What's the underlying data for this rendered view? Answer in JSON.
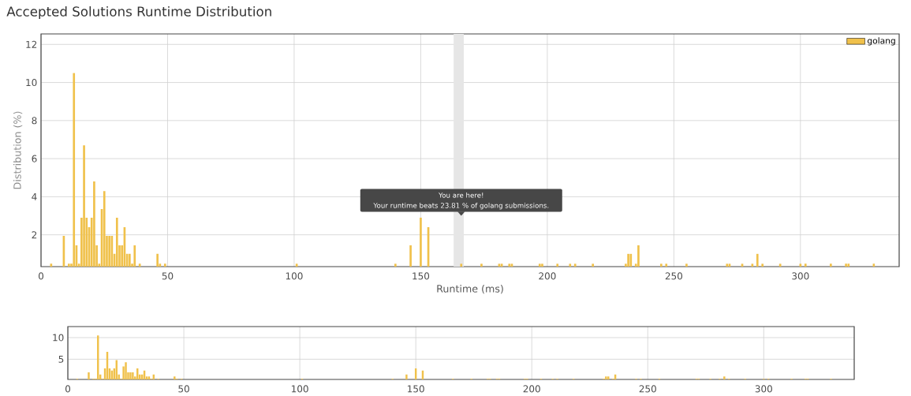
{
  "chart_data": [
    {
      "type": "bar",
      "title": "Accepted Solutions Runtime Distribution",
      "xlabel": "Runtime (ms)",
      "ylabel": "Distribution (%)",
      "x": [
        4,
        9,
        11,
        12,
        13,
        14,
        15,
        16,
        17,
        18,
        19,
        20,
        21,
        22,
        23,
        24,
        25,
        26,
        27,
        28,
        29,
        30,
        31,
        32,
        33,
        34,
        35,
        36,
        37,
        39,
        46,
        47,
        49,
        101,
        140,
        146,
        150,
        153,
        166,
        174,
        181,
        182,
        185,
        186,
        197,
        198,
        204,
        209,
        211,
        218,
        231,
        232,
        233,
        235,
        236,
        245,
        247,
        255,
        271,
        272,
        277,
        281,
        283,
        285,
        292,
        300,
        302,
        312,
        318,
        319,
        329
      ],
      "series": [
        {
          "name": "golang",
          "color": "#f0c14b",
          "values": [
            0.48,
            1.95,
            0.48,
            0.48,
            10.5,
            1.45,
            0.48,
            2.9,
            6.7,
            2.9,
            2.4,
            2.9,
            4.8,
            1.45,
            0.48,
            3.35,
            4.3,
            1.95,
            1.95,
            1.95,
            1.0,
            2.9,
            1.45,
            1.45,
            2.4,
            1.0,
            1.0,
            0.48,
            1.45,
            0.48,
            1.0,
            0.48,
            0.48,
            0.48,
            0.48,
            1.45,
            2.9,
            2.4,
            0.48,
            0.48,
            0.48,
            0.48,
            0.48,
            0.48,
            0.48,
            0.48,
            0.48,
            0.48,
            0.48,
            0.48,
            0.48,
            1.0,
            1.0,
            0.48,
            1.45,
            0.48,
            0.48,
            0.48,
            0.48,
            0.48,
            0.48,
            0.48,
            1.0,
            0.48,
            0.48,
            0.48,
            0.48,
            0.48,
            0.48,
            0.48,
            0.48
          ]
        }
      ],
      "xlim": [
        0,
        339
      ],
      "ylim": [
        0.33,
        12.55
      ],
      "xticks": [
        0,
        50,
        100,
        150,
        200,
        250,
        300
      ],
      "yticks": [
        2,
        4,
        6,
        8,
        10,
        12
      ],
      "grid": true,
      "legend": "top right",
      "bands": [
        {
          "axis": "x",
          "from": 163,
          "to": 167,
          "color": "#e6e6e6"
        }
      ],
      "annotations": [
        {
          "text": "You are here!",
          "x": 166,
          "y": 3.0
        },
        {
          "text": "Your runtime beats 23.81 % of golang submissions.",
          "x": 166,
          "y": 3.0
        }
      ]
    },
    {
      "type": "bar",
      "x": [
        4,
        9,
        11,
        12,
        13,
        14,
        15,
        16,
        17,
        18,
        19,
        20,
        21,
        22,
        23,
        24,
        25,
        26,
        27,
        28,
        29,
        30,
        31,
        32,
        33,
        34,
        35,
        36,
        37,
        39,
        46,
        47,
        49,
        101,
        140,
        146,
        150,
        153,
        166,
        174,
        181,
        182,
        185,
        186,
        197,
        198,
        204,
        209,
        211,
        218,
        231,
        232,
        233,
        235,
        236,
        245,
        247,
        255,
        271,
        272,
        277,
        281,
        283,
        285,
        292,
        300,
        302,
        312,
        318,
        319,
        329
      ],
      "series": [
        {
          "color": "#f0c14b",
          "values": [
            0.48,
            1.95,
            0.48,
            0.48,
            10.5,
            1.45,
            0.48,
            2.9,
            6.7,
            2.9,
            2.4,
            2.9,
            4.8,
            1.45,
            0.48,
            3.35,
            4.3,
            1.95,
            1.95,
            1.95,
            1.0,
            2.9,
            1.45,
            1.45,
            2.4,
            1.0,
            1.0,
            0.48,
            1.45,
            0.48,
            1.0,
            0.48,
            0.48,
            0.48,
            0.48,
            1.45,
            2.9,
            2.4,
            0.48,
            0.48,
            0.48,
            0.48,
            0.48,
            0.48,
            0.48,
            0.48,
            0.48,
            0.48,
            0.48,
            0.48,
            0.48,
            1.0,
            1.0,
            0.48,
            1.45,
            0.48,
            0.48,
            0.48,
            0.48,
            0.48,
            0.48,
            0.48,
            1.0,
            0.48,
            0.48,
            0.48,
            0.48,
            0.48,
            0.48,
            0.48,
            0.48
          ]
        }
      ],
      "xlim": [
        0,
        339
      ],
      "ylim": [
        0.33,
        12.55
      ],
      "xticks": [
        0,
        50,
        100,
        150,
        200,
        250,
        300
      ],
      "yticks": [
        5,
        10
      ],
      "grid": true
    }
  ]
}
